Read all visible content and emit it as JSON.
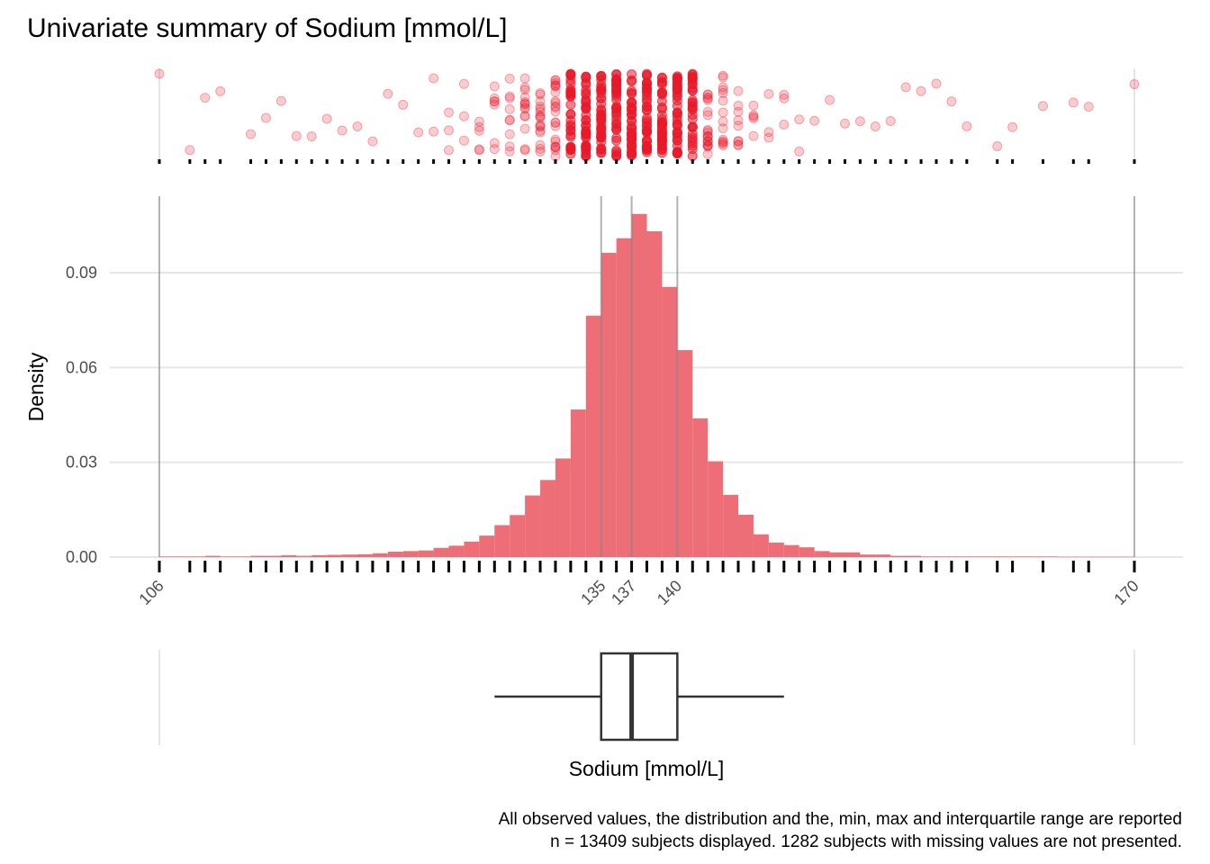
{
  "chart_data": {
    "type": "bar",
    "title": "Univariate summary of Sodium [mmol/L]",
    "xlabel": "Sodium [mmol/L]",
    "ylabel": "Density",
    "caption": [
      "All observed values, the distribution and the, min, max and interquartile range are reported",
      "n = 13409 subjects displayed. 1282 subjects with missing values are not presented."
    ],
    "xlim": [
      106,
      170
    ],
    "ylim": [
      0,
      0.112
    ],
    "y_ticks": [
      0.0,
      0.03,
      0.06,
      0.09
    ],
    "y_tick_labels": [
      "0.00",
      "0.03",
      "0.06",
      "0.09"
    ],
    "x_tick_values": [
      106,
      135,
      137,
      140,
      170
    ],
    "x_tick_labels": [
      "106",
      "135",
      "137",
      "140",
      "170"
    ],
    "grid": "horizontal",
    "bar_width": 1,
    "histogram": {
      "x": [
        106,
        107,
        108,
        109,
        110,
        111,
        112,
        113,
        114,
        115,
        116,
        117,
        118,
        119,
        120,
        121,
        122,
        123,
        124,
        125,
        126,
        127,
        128,
        129,
        130,
        131,
        132,
        133,
        134,
        135,
        136,
        137,
        138,
        139,
        140,
        141,
        142,
        143,
        144,
        145,
        146,
        147,
        148,
        149,
        150,
        151,
        152,
        153,
        154,
        155,
        156,
        157,
        158,
        159,
        160,
        161,
        162,
        163,
        164,
        165,
        166,
        167,
        168,
        169
      ],
      "density": [
        0.0002,
        0.0002,
        0.0002,
        0.0004,
        0.0002,
        0.0002,
        0.0004,
        0.0004,
        0.0006,
        0.0004,
        0.0006,
        0.0007,
        0.0008,
        0.0009,
        0.0012,
        0.0017,
        0.0019,
        0.0021,
        0.0029,
        0.0036,
        0.0049,
        0.0068,
        0.0101,
        0.0133,
        0.0195,
        0.0244,
        0.0312,
        0.0467,
        0.0764,
        0.0963,
        0.1009,
        0.1086,
        0.1031,
        0.0855,
        0.0655,
        0.0439,
        0.0303,
        0.0197,
        0.0134,
        0.0072,
        0.0046,
        0.0038,
        0.0031,
        0.0019,
        0.0015,
        0.0015,
        0.0008,
        0.0008,
        0.0004,
        0.0004,
        0.0002,
        0.0002,
        0.0002,
        0.0002,
        0.0002,
        0.0002,
        0.0002,
        0.0002,
        0.0002,
        0.0001,
        0.0001,
        0.0001,
        0.0001,
        0.0001
      ]
    },
    "observed_values": [
      106,
      108,
      109,
      110,
      112,
      113,
      114,
      115,
      116,
      117,
      118,
      119,
      120,
      121,
      122,
      123,
      124,
      125,
      126,
      127,
      128,
      129,
      130,
      131,
      132,
      133,
      134,
      135,
      136,
      137,
      138,
      139,
      140,
      141,
      142,
      143,
      144,
      145,
      146,
      147,
      148,
      149,
      150,
      151,
      152,
      153,
      154,
      155,
      156,
      157,
      158,
      159,
      161,
      162,
      164,
      166,
      167,
      170
    ],
    "summary": {
      "min": 106,
      "q1": 135,
      "median": 137,
      "q3": 140,
      "max": 170,
      "whisker_low": 128,
      "whisker_high": 147
    },
    "colors": {
      "bar_fill": "#ee6e78",
      "point": "#e8192a",
      "reference_line": "#a9a9a9",
      "grid": "#e6e6e6",
      "box": "#333333"
    }
  }
}
